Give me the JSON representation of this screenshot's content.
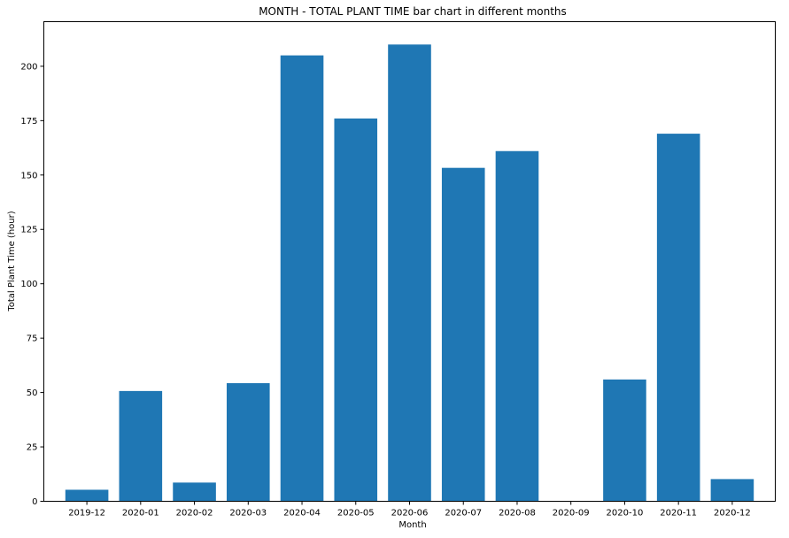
{
  "chart_data": {
    "type": "bar",
    "title": "MONTH - TOTAL PLANT TIME bar chart in different months",
    "xlabel": "Month",
    "ylabel": "Total Plant Time (hour)",
    "categories": [
      "2019-12",
      "2020-01",
      "2020-02",
      "2020-03",
      "2020-04",
      "2020-05",
      "2020-06",
      "2020-07",
      "2020-08",
      "2020-09",
      "2020-10",
      "2020-11",
      "2020-12"
    ],
    "values": [
      5.3,
      50.7,
      8.6,
      54.3,
      205,
      176,
      210,
      153.3,
      161,
      0,
      56,
      169,
      10.2
    ],
    "ylim": [
      0,
      220.5
    ],
    "yticks": [
      0,
      25,
      50,
      75,
      100,
      125,
      150,
      175,
      200
    ],
    "grid": false,
    "legend": "none",
    "bar_color": "#1f77b4"
  }
}
